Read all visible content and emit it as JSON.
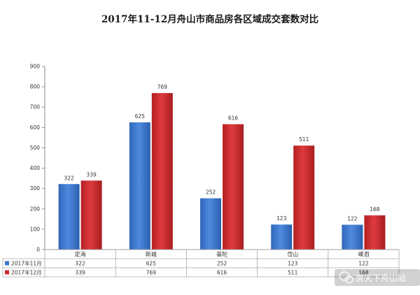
{
  "chart_data": {
    "type": "bar",
    "title": "2017年11-12月舟山市商品房各区域成交套数对比",
    "categories": [
      "定海",
      "新城",
      "普陀",
      "岱山",
      "嵊泗"
    ],
    "series": [
      {
        "name": "2017年11月",
        "values": [
          322,
          625,
          252,
          123,
          122
        ],
        "color": "#3a73c9"
      },
      {
        "name": "2017年12月",
        "values": [
          339,
          769,
          616,
          511,
          168
        ],
        "color": "#c8282b"
      }
    ],
    "ylim": [
      0,
      900
    ],
    "yticks": [
      0,
      100,
      200,
      300,
      400,
      500,
      600,
      700,
      800,
      900
    ],
    "grid": false,
    "legend": "data-table-left"
  },
  "watermark": {
    "text": "房天下舟山站",
    "icon": "wechat-icon"
  }
}
